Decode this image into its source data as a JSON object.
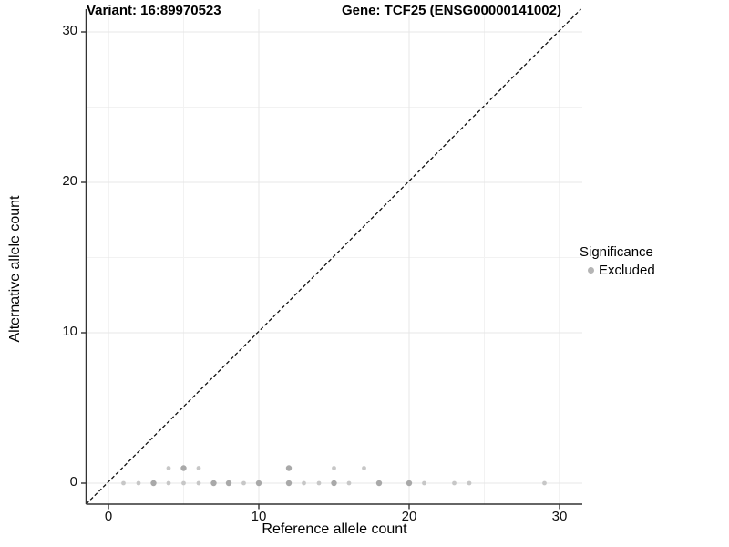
{
  "titles": {
    "left": "Variant: 16:89970523",
    "right": "Gene: TCF25 (ENSG00000141002)"
  },
  "chart_data": {
    "type": "scatter",
    "title_left": "Variant: 16:89970523",
    "title_right": "Gene: TCF25 (ENSG00000141002)",
    "xlabel": "Reference allele count",
    "ylabel": "Alternative allele count",
    "xlim": [
      -1.5,
      31.5
    ],
    "ylim": [
      -1.5,
      31.5
    ],
    "xticks": [
      0,
      10,
      20,
      30
    ],
    "yticks": [
      0,
      10,
      20,
      30
    ],
    "minor_ticks_x": [
      5,
      15,
      25
    ],
    "minor_ticks_y": [
      5,
      15,
      25
    ],
    "grid": "major and minor gridlines, light gray on white",
    "reference_line": {
      "kind": "identity y=x",
      "style": "dashed",
      "color": "#000000"
    },
    "legend": {
      "title": "Significance",
      "position": "right",
      "items": [
        {
          "label": "Excluded",
          "color": "#b5b5b5"
        }
      ]
    },
    "series": [
      {
        "name": "Excluded",
        "marker": "circle",
        "color_light": "#c7c7c7",
        "color_dark": "#a9a9a9",
        "points_format": "[x, y, overlap_weight]",
        "points": [
          [
            1,
            0,
            1
          ],
          [
            2,
            0,
            1
          ],
          [
            3,
            0,
            2
          ],
          [
            4,
            0,
            1
          ],
          [
            5,
            0,
            1
          ],
          [
            6,
            0,
            1
          ],
          [
            7,
            0,
            2
          ],
          [
            8,
            0,
            2
          ],
          [
            9,
            0,
            1
          ],
          [
            10,
            0,
            2
          ],
          [
            12,
            0,
            2
          ],
          [
            13,
            0,
            1
          ],
          [
            14,
            0,
            1
          ],
          [
            15,
            0,
            2
          ],
          [
            16,
            0,
            1
          ],
          [
            18,
            0,
            2
          ],
          [
            20,
            0,
            2
          ],
          [
            21,
            0,
            1
          ],
          [
            23,
            0,
            1
          ],
          [
            24,
            0,
            1
          ],
          [
            29,
            0,
            1
          ],
          [
            4,
            1,
            1
          ],
          [
            5,
            1,
            2
          ],
          [
            6,
            1,
            1
          ],
          [
            12,
            1,
            2
          ],
          [
            15,
            1,
            1
          ],
          [
            17,
            1,
            1
          ]
        ]
      }
    ]
  }
}
